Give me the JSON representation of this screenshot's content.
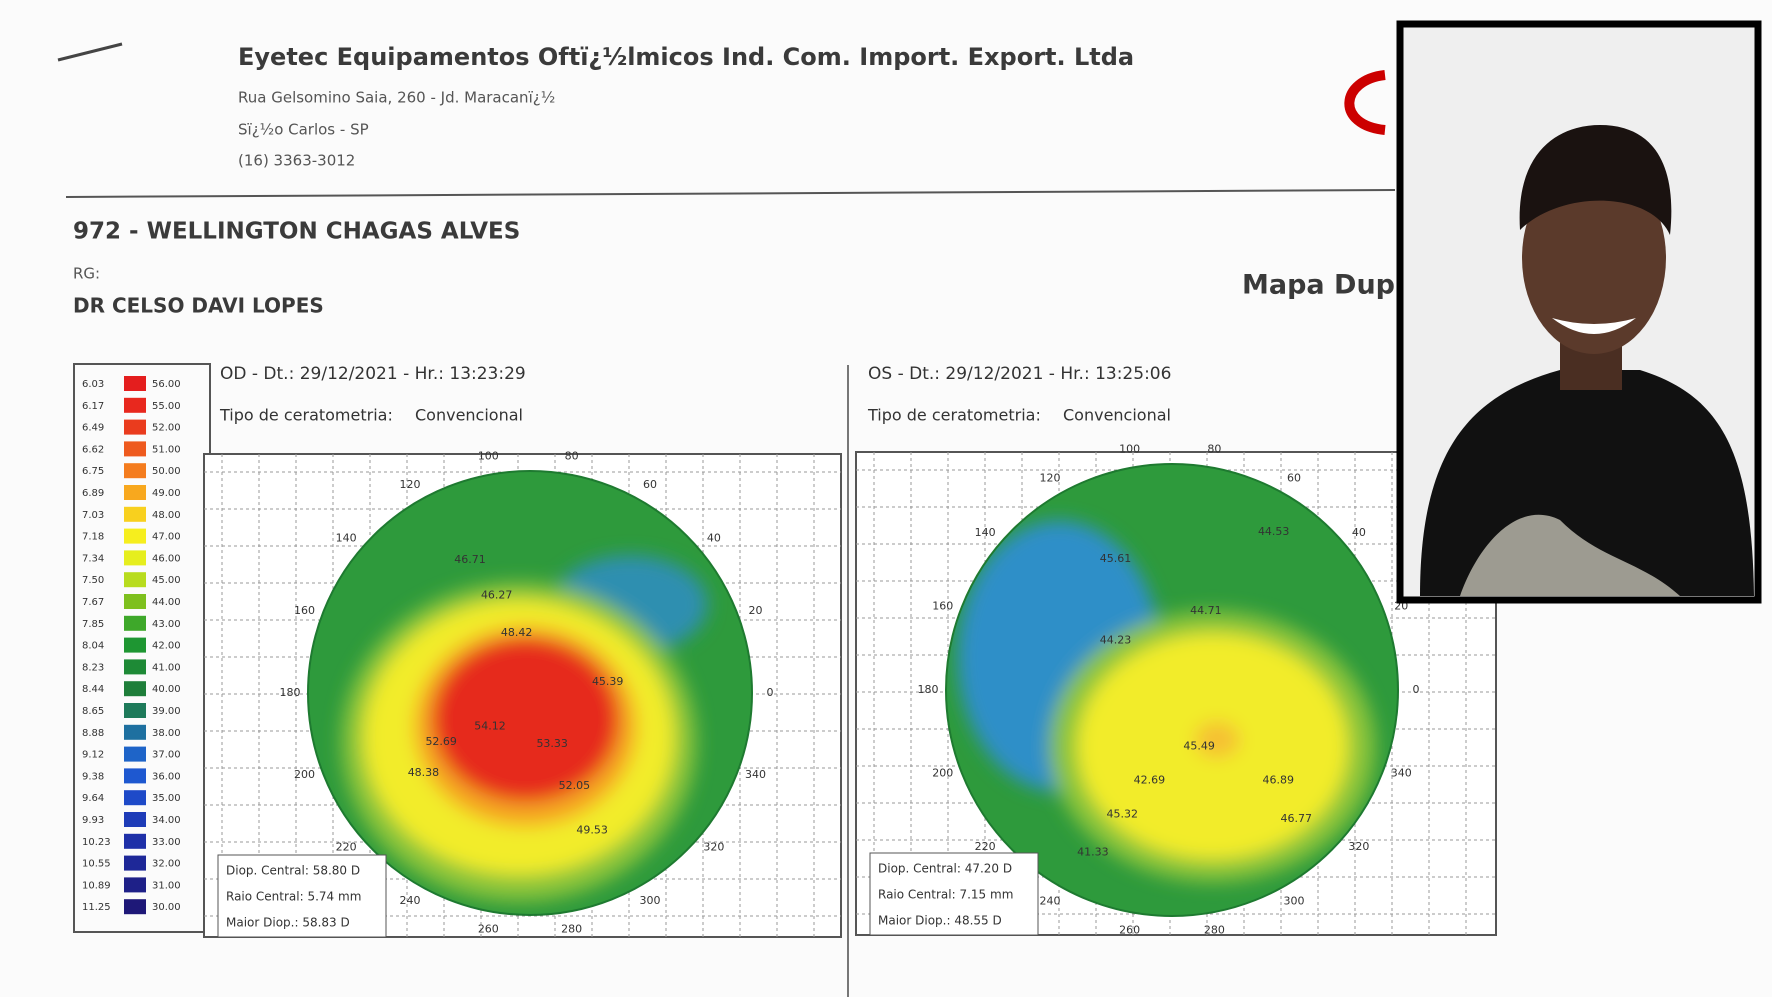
{
  "header": {
    "company": "Eyetec Equipamentos Oftï¿½lmicos Ind. Com. Import. Export. Ltda",
    "address": "Rua Gelsomino Saia, 260 - Jd. Maracanï¿½",
    "city": "Sï¿½o Carlos - SP",
    "phone": "(16) 3363-3012"
  },
  "patient": {
    "name": "972 - WELLINGTON CHAGAS ALVES",
    "rg": "RG:",
    "doctor": "DR CELSO DAVI LOPES"
  },
  "report_title": "Mapa Dup",
  "legend": {
    "rows": [
      [
        "6.03",
        "56.00"
      ],
      [
        "6.17",
        "55.00"
      ],
      [
        "6.49",
        "52.00"
      ],
      [
        "6.62",
        "51.00"
      ],
      [
        "6.75",
        "50.00"
      ],
      [
        "6.89",
        "49.00"
      ],
      [
        "7.03",
        "48.00"
      ],
      [
        "7.18",
        "47.00"
      ],
      [
        "7.34",
        "46.00"
      ],
      [
        "7.50",
        "45.00"
      ],
      [
        "7.67",
        "44.00"
      ],
      [
        "7.85",
        "43.00"
      ],
      [
        "8.04",
        "42.00"
      ],
      [
        "8.23",
        "41.00"
      ],
      [
        "8.44",
        "40.00"
      ],
      [
        "8.65",
        "39.00"
      ],
      [
        "8.88",
        "38.00"
      ],
      [
        "9.12",
        "37.00"
      ],
      [
        "9.38",
        "36.00"
      ],
      [
        "9.64",
        "35.00"
      ],
      [
        "9.93",
        "34.00"
      ],
      [
        "10.23",
        "33.00"
      ],
      [
        "10.55",
        "32.00"
      ],
      [
        "10.89",
        "31.00"
      ],
      [
        "11.25",
        "30.00"
      ]
    ]
  },
  "maps": [
    {
      "header": "OD - Dt.: 29/12/2021 - Hr.: 13:23:29",
      "keratometry_label": "Tipo de ceratometria:",
      "keratometry_value": "Convencional",
      "degrees": [
        "100",
        "80",
        "120",
        "60",
        "140",
        "40",
        "160",
        "20",
        "180",
        "0",
        "200",
        "340",
        "220",
        "320",
        "240",
        "300",
        "260",
        "280"
      ],
      "readings": [
        "46.71",
        "46.27",
        "48.42",
        "45.39",
        "54.12",
        "52.69",
        "48.38",
        "53.33",
        "52.05",
        "49.53"
      ],
      "summary": [
        "Diop. Central: 58.80 D",
        "Raio Central: 5.74 mm",
        "Maior Diop.: 58.83 D"
      ]
    },
    {
      "header": "OS - Dt.: 29/12/2021 - Hr.: 13:25:06",
      "keratometry_label": "Tipo de ceratometria:",
      "keratometry_value": "Convencional",
      "degrees": [
        "100",
        "80",
        "120",
        "60",
        "140",
        "40",
        "160",
        "20",
        "180",
        "0",
        "200",
        "340",
        "220",
        "320",
        "240",
        "300",
        "260",
        "280"
      ],
      "readings": [
        "45.61",
        "44.71",
        "44.23",
        "44.53",
        "45.49",
        "42.69",
        "46.89",
        "45.32",
        "41.33",
        "46.77"
      ],
      "summary": [
        "Diop. Central: 47.20 D",
        "Raio Central: 7.15 mm",
        "Maior Diop.: 48.55 D"
      ]
    }
  ]
}
